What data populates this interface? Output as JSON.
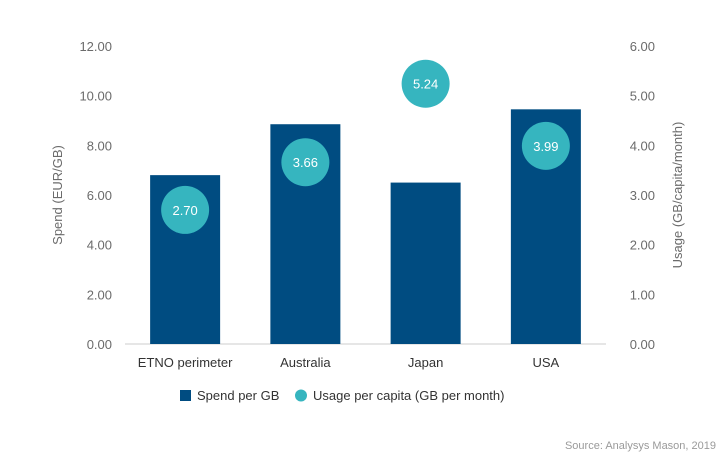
{
  "chart_data": {
    "type": "bar",
    "categories": [
      "ETNO perimeter",
      "Australia",
      "Japan",
      "USA"
    ],
    "series": [
      {
        "name": "Spend per GB",
        "kind": "bar",
        "axis": "left",
        "color": "#004c81",
        "values": [
          6.8,
          8.85,
          6.5,
          9.45
        ]
      },
      {
        "name": "Usage per capita (GB per month)",
        "kind": "bubble",
        "axis": "right",
        "color": "#36b5bf",
        "values": [
          2.7,
          3.66,
          5.24,
          3.99
        ],
        "labels": [
          "2.70",
          "3.66",
          "5.24",
          "3.99"
        ]
      }
    ],
    "ylabel": "Spend (EUR/GB)",
    "y2label": "Usage (GB/capita/month)",
    "ylim": [
      0,
      12
    ],
    "y2lim": [
      0,
      6
    ],
    "yticks": [
      "0.00",
      "2.00",
      "4.00",
      "6.00",
      "8.00",
      "10.00",
      "12.00"
    ],
    "y2ticks": [
      "0.00",
      "1.00",
      "2.00",
      "3.00",
      "4.00",
      "5.00",
      "6.00"
    ],
    "grid": false,
    "legend_position": "bottom"
  },
  "source": "Source: Analysys Mason, 2019"
}
